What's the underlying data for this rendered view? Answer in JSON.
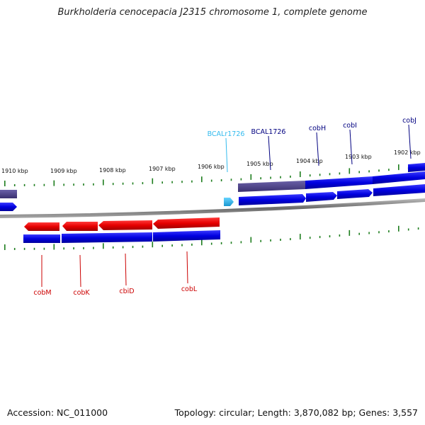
{
  "title": "Burkholderia cenocepacia J2315 chromosome 1, complete genome",
  "footer": {
    "accession": "Accession: NC_011000",
    "summary": "Topology: circular; Length: 3,870,082 bp; Genes: 3,557"
  },
  "colors": {
    "forward_gene": "#0000e6",
    "forward_gene_dark": "#4a3f86",
    "reverse_gene": "#e60000",
    "rrna": "#33bbee",
    "backbone": "#7f7f7f",
    "ticks": "#1d7d1d",
    "forward_label": "#000080",
    "reverse_label": "#cc0000",
    "rrna_label": "#33bbee"
  },
  "scale_ticks": [
    "1910 kbp",
    "1909 kbp",
    "1908 kbp",
    "1907 kbp",
    "1906 kbp",
    "1905 kbp",
    "1904 kbp",
    "1903 kbp",
    "1902 kbp"
  ],
  "forward_labels": [
    "BCALr1726",
    "BCAL1726",
    "cobH",
    "cobI",
    "cobJ"
  ],
  "reverse_labels": [
    "cobM",
    "cobK",
    "cbiD",
    "cobL"
  ]
}
